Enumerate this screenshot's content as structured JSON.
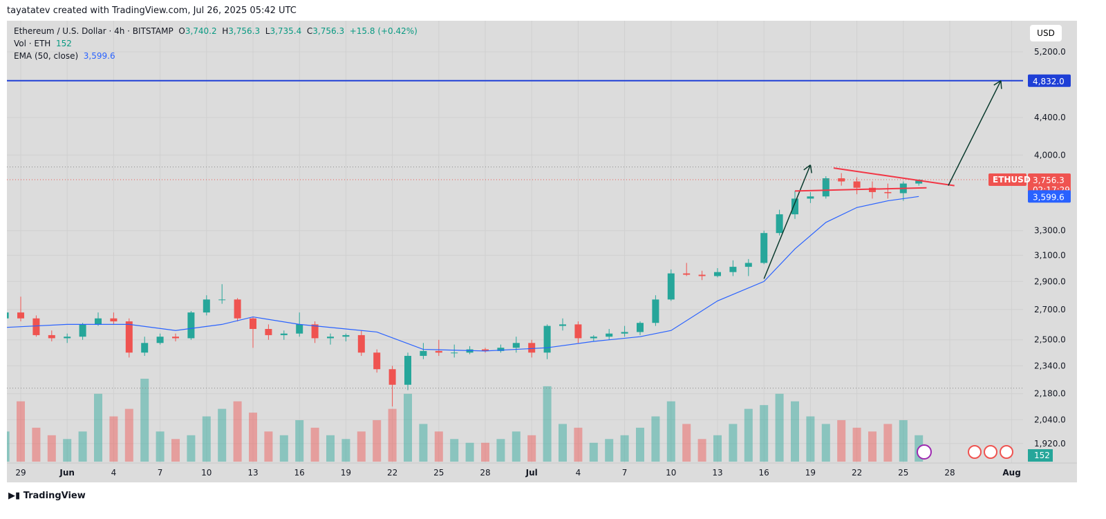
{
  "header": "tayatatev created with TradingView.com, Jul 26, 2025 05:42 UTC",
  "legend": {
    "symbol": "Ethereum / U.S. Dollar · 4h · BITSTAMP",
    "o_label": "O",
    "o": "3,740.2",
    "h_label": "H",
    "h": "3,756.3",
    "l_label": "L",
    "l": "3,735.4",
    "c_label": "C",
    "c": "3,756.3",
    "change": "+15.8 (+0.42%)",
    "vol_label": "Vol · ETH",
    "vol": "152",
    "ema_label": "EMA (50, close)",
    "ema": "3,599.6"
  },
  "currency": "USD",
  "footer": "TradingView",
  "colors": {
    "up": "#26a69a",
    "down": "#ef5350",
    "ema": "#2962ff",
    "target": "#1e3fd6",
    "triangle": "#f23645",
    "arrow": "#0b3b2e",
    "bg": "#dcdcdc"
  },
  "chart_data": {
    "type": "candlestick",
    "scale": "log",
    "ylim": [
      1880,
      5400
    ],
    "y_ticks": [
      "5,200.0",
      "4,400.0",
      "4,000.0",
      "3,300.0",
      "3,100.0",
      "2,900.0",
      "2,700.0",
      "2,500.0",
      "2,340.0",
      "2,180.0",
      "2,040.0",
      "1,920.0"
    ],
    "y_tick_values": [
      5200,
      4400,
      4000,
      3300,
      3100,
      2900,
      2700,
      2500,
      2340,
      2180,
      2040,
      1920
    ],
    "x_ticks": [
      [
        "2025-05-29",
        "29"
      ],
      [
        "2025-06-01",
        "Jun"
      ],
      [
        "2025-06-04",
        "4"
      ],
      [
        "2025-06-07",
        "7"
      ],
      [
        "2025-06-10",
        "10"
      ],
      [
        "2025-06-13",
        "13"
      ],
      [
        "2025-06-16",
        "16"
      ],
      [
        "2025-06-19",
        "19"
      ],
      [
        "2025-06-22",
        "22"
      ],
      [
        "2025-06-25",
        "25"
      ],
      [
        "2025-06-28",
        "28"
      ],
      [
        "2025-07-01",
        "Jul"
      ],
      [
        "2025-07-04",
        "4"
      ],
      [
        "2025-07-07",
        "7"
      ],
      [
        "2025-07-10",
        "10"
      ],
      [
        "2025-07-13",
        "13"
      ],
      [
        "2025-07-16",
        "16"
      ],
      [
        "2025-07-19",
        "19"
      ],
      [
        "2025-07-22",
        "22"
      ],
      [
        "2025-07-25",
        "25"
      ],
      [
        "2025-07-28",
        "28"
      ],
      [
        "2025-08-01",
        "Aug"
      ]
    ],
    "start": "2025-05-28",
    "ohlc": [
      [
        2640,
        2700,
        2620,
        2680
      ],
      [
        2680,
        2790,
        2620,
        2640
      ],
      [
        2640,
        2660,
        2520,
        2530
      ],
      [
        2530,
        2560,
        2490,
        2510
      ],
      [
        2510,
        2540,
        2480,
        2520
      ],
      [
        2520,
        2610,
        2500,
        2600
      ],
      [
        2600,
        2680,
        2590,
        2640
      ],
      [
        2640,
        2680,
        2600,
        2620
      ],
      [
        2620,
        2640,
        2390,
        2420
      ],
      [
        2420,
        2520,
        2400,
        2480
      ],
      [
        2480,
        2540,
        2470,
        2520
      ],
      [
        2520,
        2540,
        2490,
        2510
      ],
      [
        2510,
        2690,
        2500,
        2680
      ],
      [
        2680,
        2800,
        2660,
        2770
      ],
      [
        2770,
        2880,
        2740,
        2770
      ],
      [
        2770,
        2780,
        2620,
        2640
      ],
      [
        2640,
        2650,
        2450,
        2570
      ],
      [
        2570,
        2600,
        2500,
        2530
      ],
      [
        2530,
        2560,
        2500,
        2540
      ],
      [
        2540,
        2680,
        2520,
        2600
      ],
      [
        2600,
        2620,
        2480,
        2510
      ],
      [
        2510,
        2540,
        2470,
        2520
      ],
      [
        2520,
        2540,
        2490,
        2530
      ],
      [
        2530,
        2560,
        2400,
        2420
      ],
      [
        2420,
        2440,
        2300,
        2320
      ],
      [
        2320,
        2340,
        2110,
        2230
      ],
      [
        2230,
        2420,
        2200,
        2400
      ],
      [
        2400,
        2480,
        2380,
        2430
      ],
      [
        2430,
        2500,
        2400,
        2420
      ],
      [
        2420,
        2470,
        2390,
        2420
      ],
      [
        2420,
        2460,
        2410,
        2440
      ],
      [
        2440,
        2450,
        2420,
        2430
      ],
      [
        2430,
        2470,
        2420,
        2450
      ],
      [
        2450,
        2520,
        2420,
        2480
      ],
      [
        2480,
        2500,
        2390,
        2420
      ],
      [
        2420,
        2600,
        2380,
        2590
      ],
      [
        2590,
        2640,
        2560,
        2600
      ],
      [
        2600,
        2620,
        2480,
        2510
      ],
      [
        2510,
        2530,
        2490,
        2520
      ],
      [
        2520,
        2570,
        2500,
        2540
      ],
      [
        2540,
        2590,
        2520,
        2550
      ],
      [
        2550,
        2620,
        2530,
        2610
      ],
      [
        2610,
        2800,
        2590,
        2770
      ],
      [
        2770,
        2990,
        2760,
        2960
      ],
      [
        2960,
        3040,
        2940,
        2950
      ],
      [
        2950,
        2980,
        2910,
        2940
      ],
      [
        2940,
        3000,
        2930,
        2970
      ],
      [
        2970,
        3060,
        2940,
        3010
      ],
      [
        3010,
        3070,
        2940,
        3040
      ],
      [
        3040,
        3300,
        3030,
        3280
      ],
      [
        3280,
        3480,
        3260,
        3440
      ],
      [
        3440,
        3650,
        3400,
        3580
      ],
      [
        3580,
        3640,
        3540,
        3600
      ],
      [
        3600,
        3790,
        3580,
        3770
      ],
      [
        3770,
        3820,
        3700,
        3740
      ],
      [
        3740,
        3780,
        3620,
        3680
      ],
      [
        3680,
        3740,
        3580,
        3640
      ],
      [
        3640,
        3720,
        3580,
        3630
      ],
      [
        3630,
        3740,
        3560,
        3720
      ],
      [
        3720,
        3760,
        3700,
        3756.3
      ]
    ],
    "volume": [
      40,
      80,
      45,
      35,
      30,
      40,
      90,
      60,
      70,
      110,
      40,
      30,
      35,
      60,
      70,
      80,
      65,
      40,
      35,
      55,
      45,
      35,
      30,
      40,
      55,
      70,
      90,
      50,
      40,
      30,
      25,
      25,
      30,
      40,
      35,
      100,
      50,
      45,
      25,
      30,
      35,
      45,
      60,
      80,
      50,
      30,
      35,
      50,
      70,
      75,
      90,
      80,
      60,
      50,
      55,
      45,
      40,
      50,
      55,
      35
    ],
    "ema": [
      [
        "2025-05-28",
        2580
      ],
      [
        "2025-06-01",
        2600
      ],
      [
        "2025-06-05",
        2600
      ],
      [
        "2025-06-08",
        2560
      ],
      [
        "2025-06-11",
        2600
      ],
      [
        "2025-06-13",
        2650
      ],
      [
        "2025-06-16",
        2600
      ],
      [
        "2025-06-19",
        2570
      ],
      [
        "2025-06-21",
        2550
      ],
      [
        "2025-06-24",
        2440
      ],
      [
        "2025-06-28",
        2430
      ],
      [
        "2025-07-02",
        2450
      ],
      [
        "2025-07-05",
        2490
      ],
      [
        "2025-07-08",
        2520
      ],
      [
        "2025-07-10",
        2560
      ],
      [
        "2025-07-13",
        2760
      ],
      [
        "2025-07-16",
        2900
      ],
      [
        "2025-07-18",
        3150
      ],
      [
        "2025-07-20",
        3370
      ],
      [
        "2025-07-22",
        3500
      ],
      [
        "2025-07-24",
        3560
      ],
      [
        "2025-07-26",
        3599.6
      ]
    ],
    "target_line": {
      "price": 4832,
      "label": "4,832.0"
    },
    "last_price": {
      "symbol": "ETHUSD",
      "label": "3,756.3",
      "countdown": "02:17:29",
      "price": 3756.3
    },
    "ema_label": {
      "label": "3,599.6",
      "price": 3599.6
    },
    "volume_label": "152",
    "drawings": [
      {
        "kind": "arrow",
        "from": [
          "2025-07-16",
          2920
        ],
        "to": [
          "2025-07-19",
          3900
        ]
      },
      {
        "kind": "line",
        "from": [
          "2025-07-20.5",
          3870
        ],
        "to": [
          "2025-07-28.3",
          3700
        ]
      },
      {
        "kind": "line",
        "from": [
          "2025-07-18",
          3650
        ],
        "to": [
          "2025-07-26.5",
          3680
        ]
      },
      {
        "kind": "arrow",
        "from": [
          "2025-07-27.9",
          3700
        ],
        "to": [
          "2025-07-31.3",
          4832
        ]
      }
    ]
  }
}
